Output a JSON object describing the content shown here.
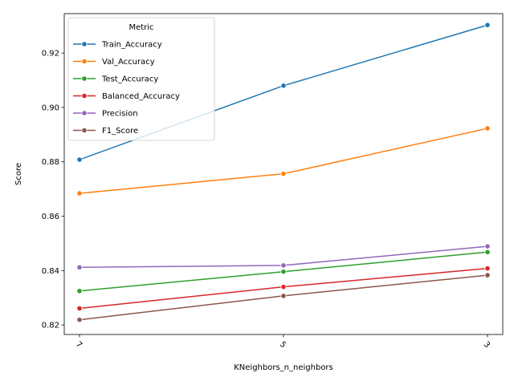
{
  "chart_data": {
    "type": "line",
    "x": [
      "7",
      "5",
      "3"
    ],
    "xlabel": "KNeighbors_n_neighbors",
    "ylabel": "Score",
    "ylim": [
      0.8165,
      0.9345
    ],
    "yticks": [
      0.82,
      0.84,
      0.86,
      0.88,
      0.9,
      0.92
    ],
    "ytick_labels": [
      "0.82",
      "0.84",
      "0.86",
      "0.88",
      "0.90",
      "0.92"
    ],
    "grid": false,
    "legend": {
      "title": "Metric",
      "placement": "upper-left"
    },
    "series": [
      {
        "name": "Train_Accuracy",
        "color": "#1f77b4",
        "values": [
          0.8808,
          0.908,
          0.9303
        ]
      },
      {
        "name": "Val_Accuracy",
        "color": "#ff7f0e",
        "values": [
          0.8684,
          0.8756,
          0.8923
        ]
      },
      {
        "name": "Test_Accuracy",
        "color": "#2ca02c",
        "values": [
          0.8325,
          0.8396,
          0.8468
        ]
      },
      {
        "name": "Balanced_Accuracy",
        "color": "#d62728",
        "values": [
          0.8261,
          0.834,
          0.8408
        ]
      },
      {
        "name": "Precision",
        "color": "#9467bd",
        "values": [
          0.8412,
          0.8419,
          0.8489
        ]
      },
      {
        "name": "F1_Score",
        "color": "#8c564b",
        "values": [
          0.8219,
          0.8307,
          0.8383
        ]
      }
    ]
  }
}
